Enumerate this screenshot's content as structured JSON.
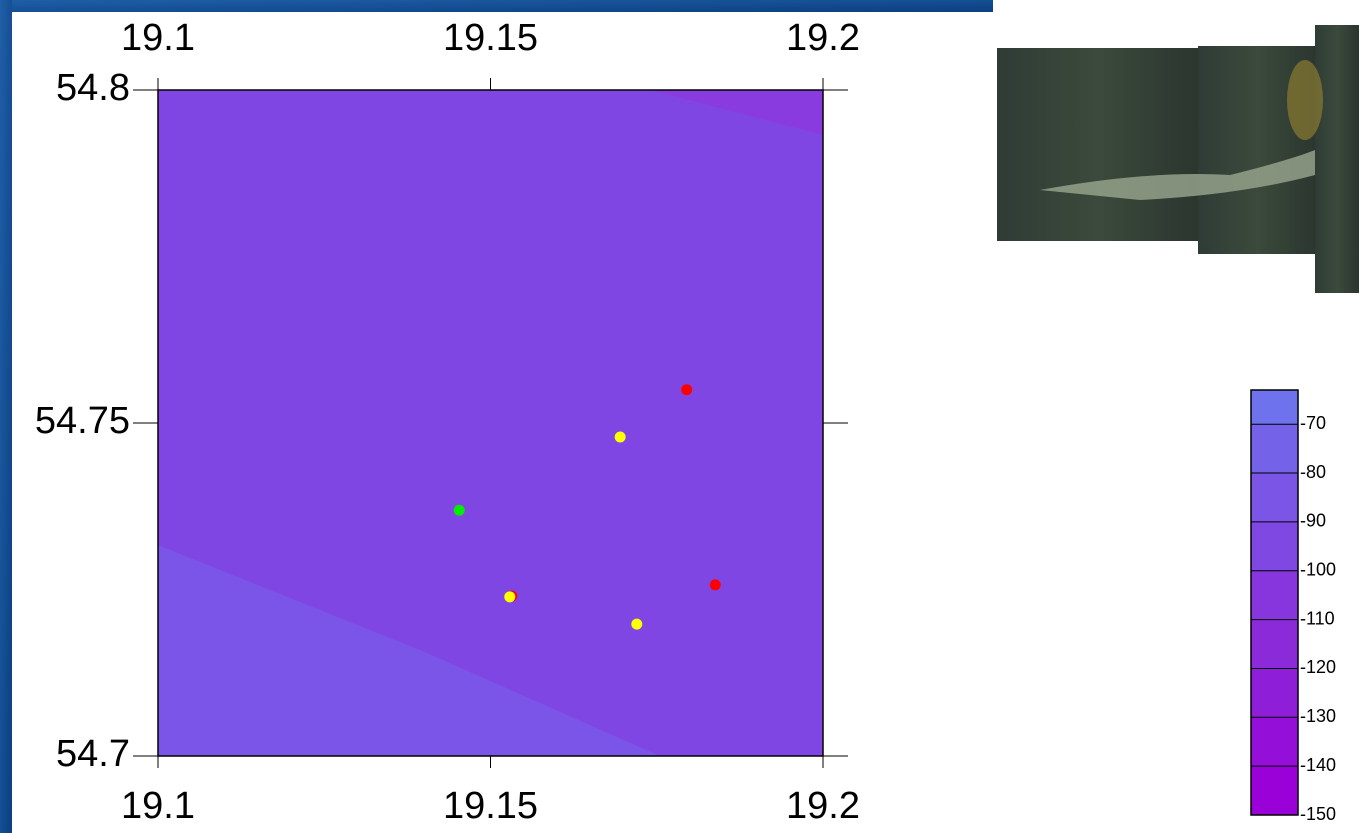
{
  "chart_data": {
    "type": "scatter",
    "xlim": [
      19.1,
      19.2
    ],
    "xticks": [
      19.1,
      19.15,
      19.2
    ],
    "ylim": [
      54.7,
      54.8
    ],
    "yticks": [
      54.7,
      54.75,
      54.8
    ],
    "series": [
      {
        "color": "#ff0000",
        "x": [
          19.1795,
          19.1838,
          19.1532
        ],
        "values": [
          54.755,
          54.7257,
          54.724
        ]
      },
      {
        "color": "#ffff00",
        "x": [
          19.1695,
          19.1529,
          19.172
        ],
        "values": [
          54.7479,
          54.7239,
          54.7198
        ]
      },
      {
        "color": "#00ee00",
        "x": [
          19.1453
        ],
        "values": [
          54.7369
        ]
      }
    ],
    "colorbar": {
      "clim": [
        -150,
        -63
      ],
      "ticks": [
        -70,
        -80,
        -90,
        -100,
        -110,
        -120,
        -130,
        -140,
        -150
      ],
      "colors": [
        "#9a00d8",
        "#9410d8",
        "#8e1ed8",
        "#8a2ad8",
        "#8636dc",
        "#8048e2",
        "#7a55e6",
        "#7463e8",
        "#6e72ec"
      ]
    }
  }
}
